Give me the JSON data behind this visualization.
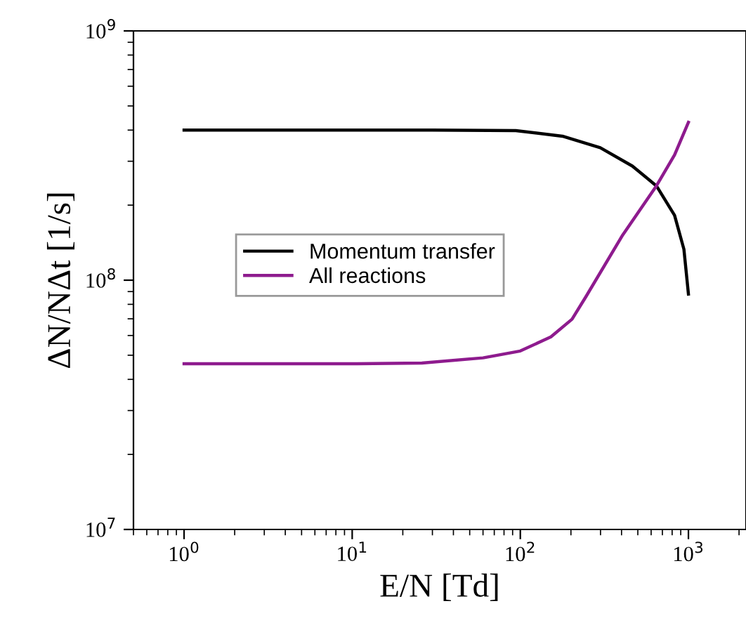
{
  "chart_data": {
    "type": "line",
    "xlabel": "E/N [Td]",
    "ylabel": "ΔN/NΔt [1/s]",
    "log": "xy",
    "grid": false,
    "legend": "center left",
    "marker": "none",
    "line_style": "solid",
    "xlim": [
      0.5,
      2200
    ],
    "xticks": [
      {
        "value": 1,
        "label": "10$^{0}$"
      },
      {
        "value": 10,
        "label": "10$^{1}$"
      },
      {
        "value": 100,
        "label": "10$^{2}$"
      },
      {
        "value": 1000,
        "label": "10$^{3}$"
      }
    ],
    "ylim": [
      10000000.0,
      1000000000.0
    ],
    "yticks": [
      {
        "value": 10000000.0,
        "label": "10$^{7}$"
      },
      {
        "value": 100000000.0,
        "label": "10$^{8}$"
      },
      {
        "value": 1000000000.0,
        "label": "10$^{9}$"
      }
    ],
    "series": [
      {
        "name": "Momentum transfer",
        "color": "#000000",
        "x": [
          1,
          10,
          30,
          94,
          178,
          299,
          464,
          645,
          827,
          940,
          1000
        ],
        "values": [
          400000000.0,
          400000000.0,
          400000000.0,
          398000000.0,
          378000000.0,
          340000000.0,
          287000000.0,
          239000000.0,
          182000000.0,
          133000000.0,
          88000000.0
        ]
      },
      {
        "name": "All reactions",
        "color": "#8e1b8e",
        "x": [
          1,
          10,
          26,
          60,
          100,
          152,
          203,
          246,
          407,
          645,
          827,
          1000
        ],
        "values": [
          46200000.0,
          46200000.0,
          46500000.0,
          48800000.0,
          52000000.0,
          59200000.0,
          69700000.0,
          86000000.0,
          152000000.0,
          239000000.0,
          318000000.0,
          430000000.0
        ]
      }
    ]
  }
}
